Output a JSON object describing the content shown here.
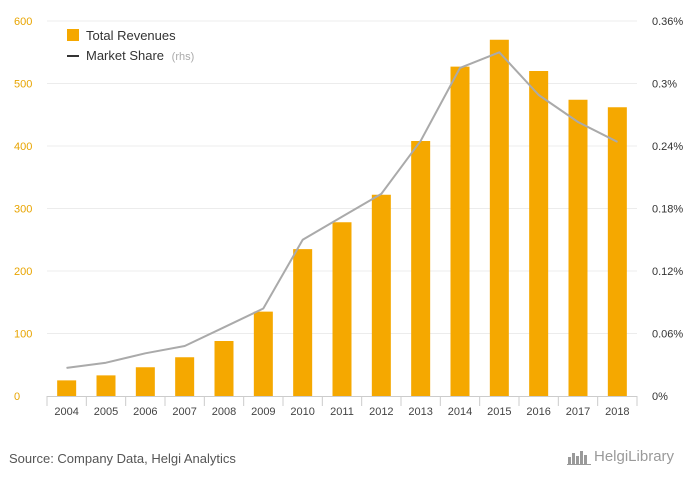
{
  "chart_data": {
    "type": "bar",
    "categories": [
      "2004",
      "2005",
      "2006",
      "2007",
      "2008",
      "2009",
      "2010",
      "2011",
      "2012",
      "2013",
      "2014",
      "2015",
      "2016",
      "2017",
      "2018"
    ],
    "series": [
      {
        "name": "Total Revenues",
        "type": "bar",
        "axis": "left",
        "color": "#f5a800",
        "values": [
          25,
          33,
          46,
          62,
          88,
          135,
          235,
          278,
          322,
          408,
          527,
          570,
          520,
          474,
          462
        ]
      },
      {
        "name": "Market Share",
        "name_suffix": "(rhs)",
        "type": "line",
        "axis": "right",
        "color": "#aaaaaa",
        "values": [
          0.027,
          0.032,
          0.041,
          0.048,
          0.066,
          0.084,
          0.15,
          0.172,
          0.194,
          0.245,
          0.315,
          0.33,
          0.289,
          0.263,
          0.244
        ]
      }
    ],
    "ylim_left": [
      0,
      600
    ],
    "yticks_left": [
      "0",
      "100",
      "200",
      "300",
      "400",
      "500",
      "600"
    ],
    "ylim_right": [
      0,
      0.36
    ],
    "yticks_right": [
      "0%",
      "0.06%",
      "0.12%",
      "0.18%",
      "0.24%",
      "0.3%",
      "0.36%"
    ],
    "grid": true,
    "legend_position": "top-left"
  },
  "source": "Source: Company Data, Helgi Analytics",
  "logo": {
    "text": "HelgiLibrary",
    "icon": "city-skyline-icon"
  }
}
